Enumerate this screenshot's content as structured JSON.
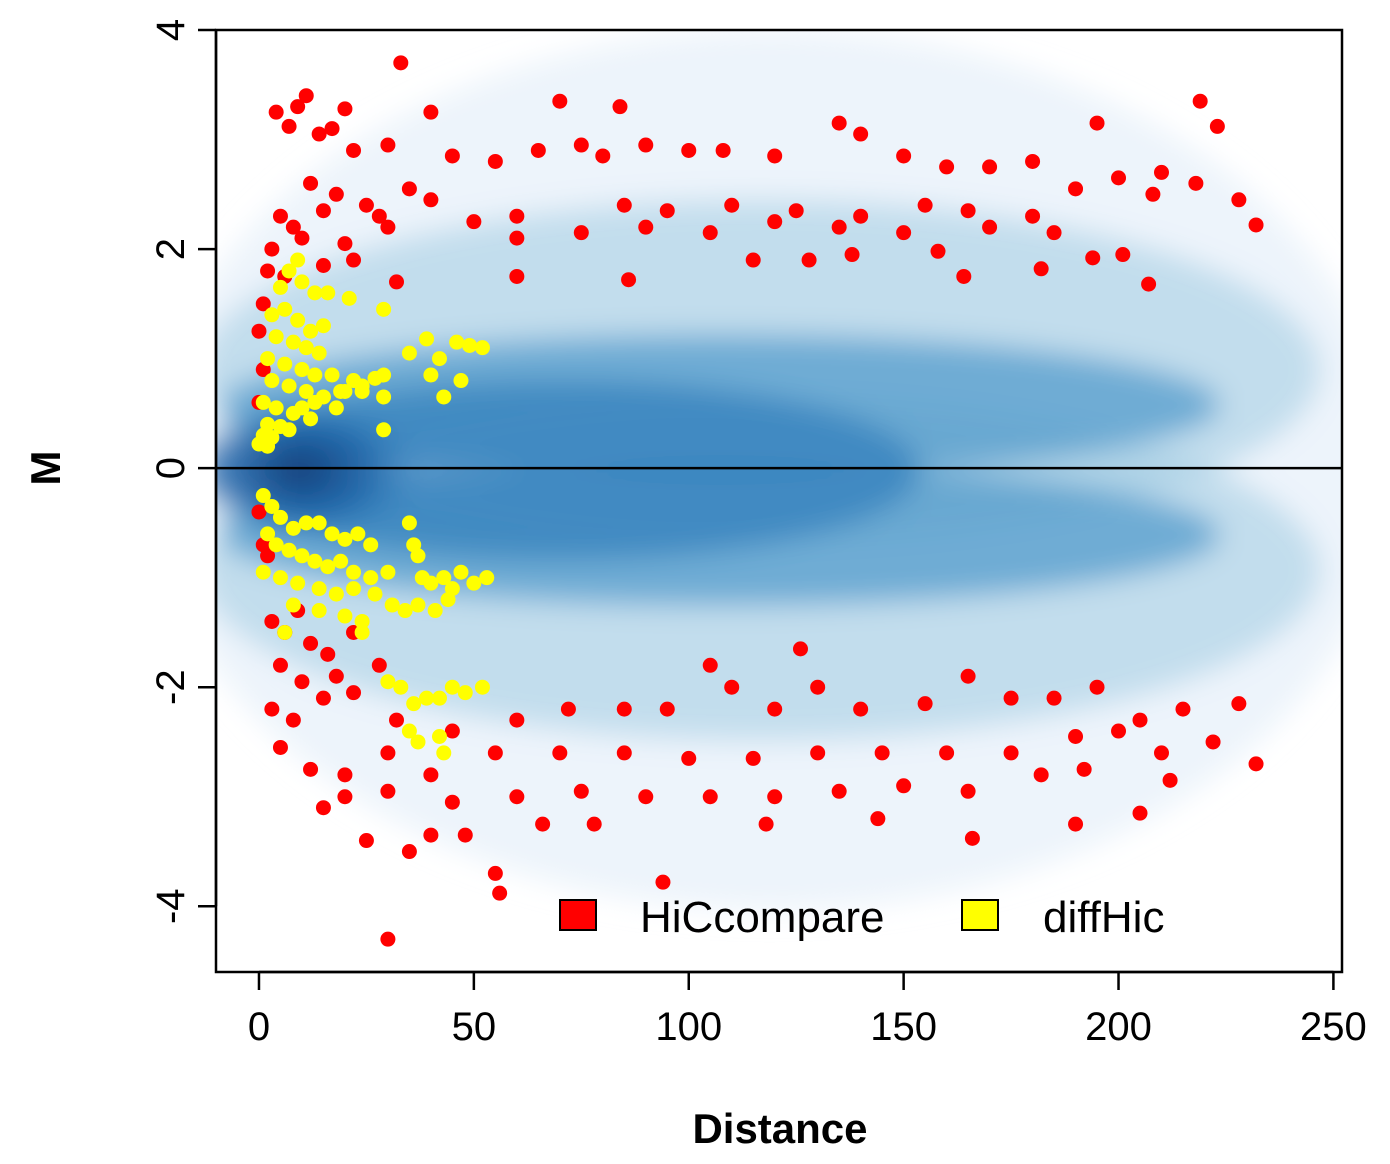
{
  "chart_data": {
    "type": "scatter",
    "title": "",
    "xlabel": "Distance",
    "ylabel": "M",
    "xlim": [
      -10,
      252
    ],
    "ylim": [
      -4.6,
      4
    ],
    "x_ticks": [
      0,
      50,
      100,
      150,
      200,
      250
    ],
    "y_ticks": [
      -4,
      -2,
      0,
      2,
      4
    ],
    "x_tick_labels": [
      "0",
      "50",
      "100",
      "150",
      "200",
      "250"
    ],
    "y_tick_labels": [
      "-4",
      "-2",
      "0",
      "2",
      "4"
    ],
    "reference_line_y": 0,
    "grid": false,
    "background": "smoothed density of all interactions (blue)",
    "legend": {
      "position": "bottom-center",
      "entries": [
        {
          "label": "HiCcompare",
          "color": "#ff0000"
        },
        {
          "label": "diffHic",
          "color": "#ffff00"
        }
      ]
    },
    "density_color": "#08306b",
    "series": [
      {
        "name": "HiCcompare",
        "color": "#ff0000",
        "points": [
          [
            33,
            3.7
          ],
          [
            11,
            3.4
          ],
          [
            4,
            3.25
          ],
          [
            9,
            3.3
          ],
          [
            20,
            3.28
          ],
          [
            17,
            3.1
          ],
          [
            7,
            3.12
          ],
          [
            14,
            3.05
          ],
          [
            40,
            3.25
          ],
          [
            22,
            2.9
          ],
          [
            30,
            2.95
          ],
          [
            45,
            2.85
          ],
          [
            55,
            2.8
          ],
          [
            70,
            3.35
          ],
          [
            84,
            3.3
          ],
          [
            65,
            2.9
          ],
          [
            75,
            2.95
          ],
          [
            80,
            2.85
          ],
          [
            90,
            2.95
          ],
          [
            100,
            2.9
          ],
          [
            108,
            2.9
          ],
          [
            120,
            2.85
          ],
          [
            135,
            3.15
          ],
          [
            140,
            3.05
          ],
          [
            150,
            2.85
          ],
          [
            160,
            2.75
          ],
          [
            170,
            2.75
          ],
          [
            180,
            2.8
          ],
          [
            195,
            3.15
          ],
          [
            219,
            3.35
          ],
          [
            223,
            3.12
          ],
          [
            210,
            2.7
          ],
          [
            12,
            2.6
          ],
          [
            18,
            2.5
          ],
          [
            25,
            2.4
          ],
          [
            35,
            2.55
          ],
          [
            5,
            2.3
          ],
          [
            8,
            2.2
          ],
          [
            15,
            2.35
          ],
          [
            28,
            2.3
          ],
          [
            40,
            2.45
          ],
          [
            60,
            2.3
          ],
          [
            85,
            2.4
          ],
          [
            95,
            2.35
          ],
          [
            110,
            2.4
          ],
          [
            125,
            2.35
          ],
          [
            140,
            2.3
          ],
          [
            155,
            2.4
          ],
          [
            165,
            2.35
          ],
          [
            180,
            2.3
          ],
          [
            190,
            2.55
          ],
          [
            200,
            2.65
          ],
          [
            208,
            2.5
          ],
          [
            218,
            2.6
          ],
          [
            228,
            2.45
          ],
          [
            232,
            2.22
          ],
          [
            3,
            2.0
          ],
          [
            10,
            2.1
          ],
          [
            20,
            2.05
          ],
          [
            30,
            2.2
          ],
          [
            50,
            2.25
          ],
          [
            60,
            2.1
          ],
          [
            75,
            2.15
          ],
          [
            90,
            2.2
          ],
          [
            105,
            2.15
          ],
          [
            120,
            2.25
          ],
          [
            135,
            2.2
          ],
          [
            150,
            2.15
          ],
          [
            170,
            2.2
          ],
          [
            185,
            2.15
          ],
          [
            2,
            1.8
          ],
          [
            6,
            1.75
          ],
          [
            15,
            1.85
          ],
          [
            22,
            1.9
          ],
          [
            32,
            1.7
          ],
          [
            60,
            1.75
          ],
          [
            86,
            1.72
          ],
          [
            115,
            1.9
          ],
          [
            128,
            1.9
          ],
          [
            138,
            1.95
          ],
          [
            158,
            1.98
          ],
          [
            164,
            1.75
          ],
          [
            182,
            1.82
          ],
          [
            194,
            1.92
          ],
          [
            201,
            1.95
          ],
          [
            207,
            1.68
          ],
          [
            1,
            1.5
          ],
          [
            0,
            1.25
          ],
          [
            1,
            0.9
          ],
          [
            0,
            0.6
          ],
          [
            0,
            -0.4
          ],
          [
            1,
            -0.7
          ],
          [
            2,
            -0.8
          ],
          [
            3,
            -1.4
          ],
          [
            6,
            -1.5
          ],
          [
            9,
            -1.3
          ],
          [
            12,
            -1.6
          ],
          [
            16,
            -1.7
          ],
          [
            22,
            -1.5
          ],
          [
            5,
            -1.8
          ],
          [
            10,
            -1.95
          ],
          [
            18,
            -1.9
          ],
          [
            28,
            -1.8
          ],
          [
            3,
            -2.2
          ],
          [
            8,
            -2.3
          ],
          [
            15,
            -2.1
          ],
          [
            22,
            -2.05
          ],
          [
            32,
            -2.3
          ],
          [
            45,
            -2.4
          ],
          [
            60,
            -2.3
          ],
          [
            72,
            -2.2
          ],
          [
            85,
            -2.2
          ],
          [
            95,
            -2.2
          ],
          [
            105,
            -1.8
          ],
          [
            110,
            -2.0
          ],
          [
            120,
            -2.2
          ],
          [
            126,
            -1.65
          ],
          [
            130,
            -2.0
          ],
          [
            140,
            -2.2
          ],
          [
            155,
            -2.15
          ],
          [
            165,
            -1.9
          ],
          [
            175,
            -2.1
          ],
          [
            185,
            -2.1
          ],
          [
            195,
            -2.0
          ],
          [
            205,
            -2.3
          ],
          [
            215,
            -2.2
          ],
          [
            228,
            -2.15
          ],
          [
            5,
            -2.55
          ],
          [
            12,
            -2.75
          ],
          [
            20,
            -2.8
          ],
          [
            30,
            -2.6
          ],
          [
            40,
            -2.8
          ],
          [
            55,
            -2.6
          ],
          [
            70,
            -2.6
          ],
          [
            85,
            -2.6
          ],
          [
            100,
            -2.65
          ],
          [
            115,
            -2.65
          ],
          [
            130,
            -2.6
          ],
          [
            145,
            -2.6
          ],
          [
            160,
            -2.6
          ],
          [
            175,
            -2.6
          ],
          [
            190,
            -2.45
          ],
          [
            200,
            -2.4
          ],
          [
            210,
            -2.6
          ],
          [
            222,
            -2.5
          ],
          [
            232,
            -2.7
          ],
          [
            15,
            -3.1
          ],
          [
            20,
            -3.0
          ],
          [
            30,
            -2.95
          ],
          [
            45,
            -3.05
          ],
          [
            60,
            -3.0
          ],
          [
            75,
            -2.95
          ],
          [
            90,
            -3.0
          ],
          [
            105,
            -3.0
          ],
          [
            120,
            -3.0
          ],
          [
            135,
            -2.95
          ],
          [
            150,
            -2.9
          ],
          [
            165,
            -2.95
          ],
          [
            182,
            -2.8
          ],
          [
            192,
            -2.75
          ],
          [
            205,
            -3.15
          ],
          [
            212,
            -2.85
          ],
          [
            25,
            -3.4
          ],
          [
            35,
            -3.5
          ],
          [
            40,
            -3.35
          ],
          [
            48,
            -3.35
          ],
          [
            55,
            -3.7
          ],
          [
            56,
            -3.88
          ],
          [
            66,
            -3.25
          ],
          [
            78,
            -3.25
          ],
          [
            94,
            -3.78
          ],
          [
            118,
            -3.25
          ],
          [
            144,
            -3.2
          ],
          [
            166,
            -3.38
          ],
          [
            190,
            -3.25
          ],
          [
            30,
            -4.3
          ]
        ]
      },
      {
        "name": "diffHic",
        "color": "#ffff00",
        "points": [
          [
            9,
            1.9
          ],
          [
            7,
            1.8
          ],
          [
            5,
            1.65
          ],
          [
            10,
            1.7
          ],
          [
            13,
            1.6
          ],
          [
            16,
            1.6
          ],
          [
            21,
            1.55
          ],
          [
            29,
            1.45
          ],
          [
            3,
            1.4
          ],
          [
            6,
            1.45
          ],
          [
            9,
            1.35
          ],
          [
            12,
            1.25
          ],
          [
            15,
            1.3
          ],
          [
            4,
            1.2
          ],
          [
            8,
            1.15
          ],
          [
            11,
            1.1
          ],
          [
            14,
            1.05
          ],
          [
            2,
            1.0
          ],
          [
            6,
            0.95
          ],
          [
            10,
            0.9
          ],
          [
            13,
            0.85
          ],
          [
            17,
            0.85
          ],
          [
            22,
            0.8
          ],
          [
            27,
            0.82
          ],
          [
            29,
            0.85
          ],
          [
            3,
            0.8
          ],
          [
            7,
            0.75
          ],
          [
            11,
            0.7
          ],
          [
            15,
            0.65
          ],
          [
            19,
            0.7
          ],
          [
            24,
            0.7
          ],
          [
            29,
            0.65
          ],
          [
            1,
            0.6
          ],
          [
            4,
            0.55
          ],
          [
            8,
            0.5
          ],
          [
            12,
            0.45
          ],
          [
            2,
            0.4
          ],
          [
            5,
            0.38
          ],
          [
            1,
            0.3
          ],
          [
            3,
            0.28
          ],
          [
            0,
            0.22
          ],
          [
            2,
            0.2
          ],
          [
            7,
            0.35
          ],
          [
            10,
            0.55
          ],
          [
            13,
            0.6
          ],
          [
            18,
            0.55
          ],
          [
            20,
            0.7
          ],
          [
            24,
            0.75
          ],
          [
            29,
            0.35
          ],
          [
            35,
            1.05
          ],
          [
            39,
            1.18
          ],
          [
            42,
            1.0
          ],
          [
            46,
            1.15
          ],
          [
            49,
            1.12
          ],
          [
            52,
            1.1
          ],
          [
            40,
            0.85
          ],
          [
            43,
            0.65
          ],
          [
            47,
            0.8
          ],
          [
            1,
            -0.25
          ],
          [
            3,
            -0.35
          ],
          [
            5,
            -0.45
          ],
          [
            8,
            -0.55
          ],
          [
            11,
            -0.5
          ],
          [
            14,
            -0.5
          ],
          [
            17,
            -0.6
          ],
          [
            20,
            -0.65
          ],
          [
            23,
            -0.6
          ],
          [
            26,
            -0.7
          ],
          [
            2,
            -0.6
          ],
          [
            4,
            -0.7
          ],
          [
            7,
            -0.75
          ],
          [
            10,
            -0.8
          ],
          [
            13,
            -0.85
          ],
          [
            16,
            -0.9
          ],
          [
            19,
            -0.85
          ],
          [
            22,
            -0.95
          ],
          [
            26,
            -1.0
          ],
          [
            30,
            -0.95
          ],
          [
            35,
            -0.5
          ],
          [
            36,
            -0.7
          ],
          [
            37,
            -0.8
          ],
          [
            38,
            -1.0
          ],
          [
            40,
            -1.05
          ],
          [
            43,
            -1.0
          ],
          [
            45,
            -1.1
          ],
          [
            47,
            -0.95
          ],
          [
            50,
            -1.05
          ],
          [
            53,
            -1.0
          ],
          [
            1,
            -0.95
          ],
          [
            5,
            -1.0
          ],
          [
            9,
            -1.05
          ],
          [
            14,
            -1.1
          ],
          [
            18,
            -1.15
          ],
          [
            22,
            -1.1
          ],
          [
            27,
            -1.15
          ],
          [
            31,
            -1.25
          ],
          [
            34,
            -1.3
          ],
          [
            37,
            -1.25
          ],
          [
            41,
            -1.3
          ],
          [
            44,
            -1.2
          ],
          [
            8,
            -1.25
          ],
          [
            14,
            -1.3
          ],
          [
            20,
            -1.35
          ],
          [
            24,
            -1.4
          ],
          [
            6,
            -1.5
          ],
          [
            24,
            -1.5
          ],
          [
            30,
            -1.95
          ],
          [
            33,
            -2.0
          ],
          [
            36,
            -2.15
          ],
          [
            39,
            -2.1
          ],
          [
            42,
            -2.1
          ],
          [
            45,
            -2.0
          ],
          [
            48,
            -2.05
          ],
          [
            52,
            -2.0
          ],
          [
            35,
            -2.4
          ],
          [
            37,
            -2.5
          ],
          [
            42,
            -2.45
          ],
          [
            43,
            -2.6
          ]
        ]
      }
    ]
  }
}
